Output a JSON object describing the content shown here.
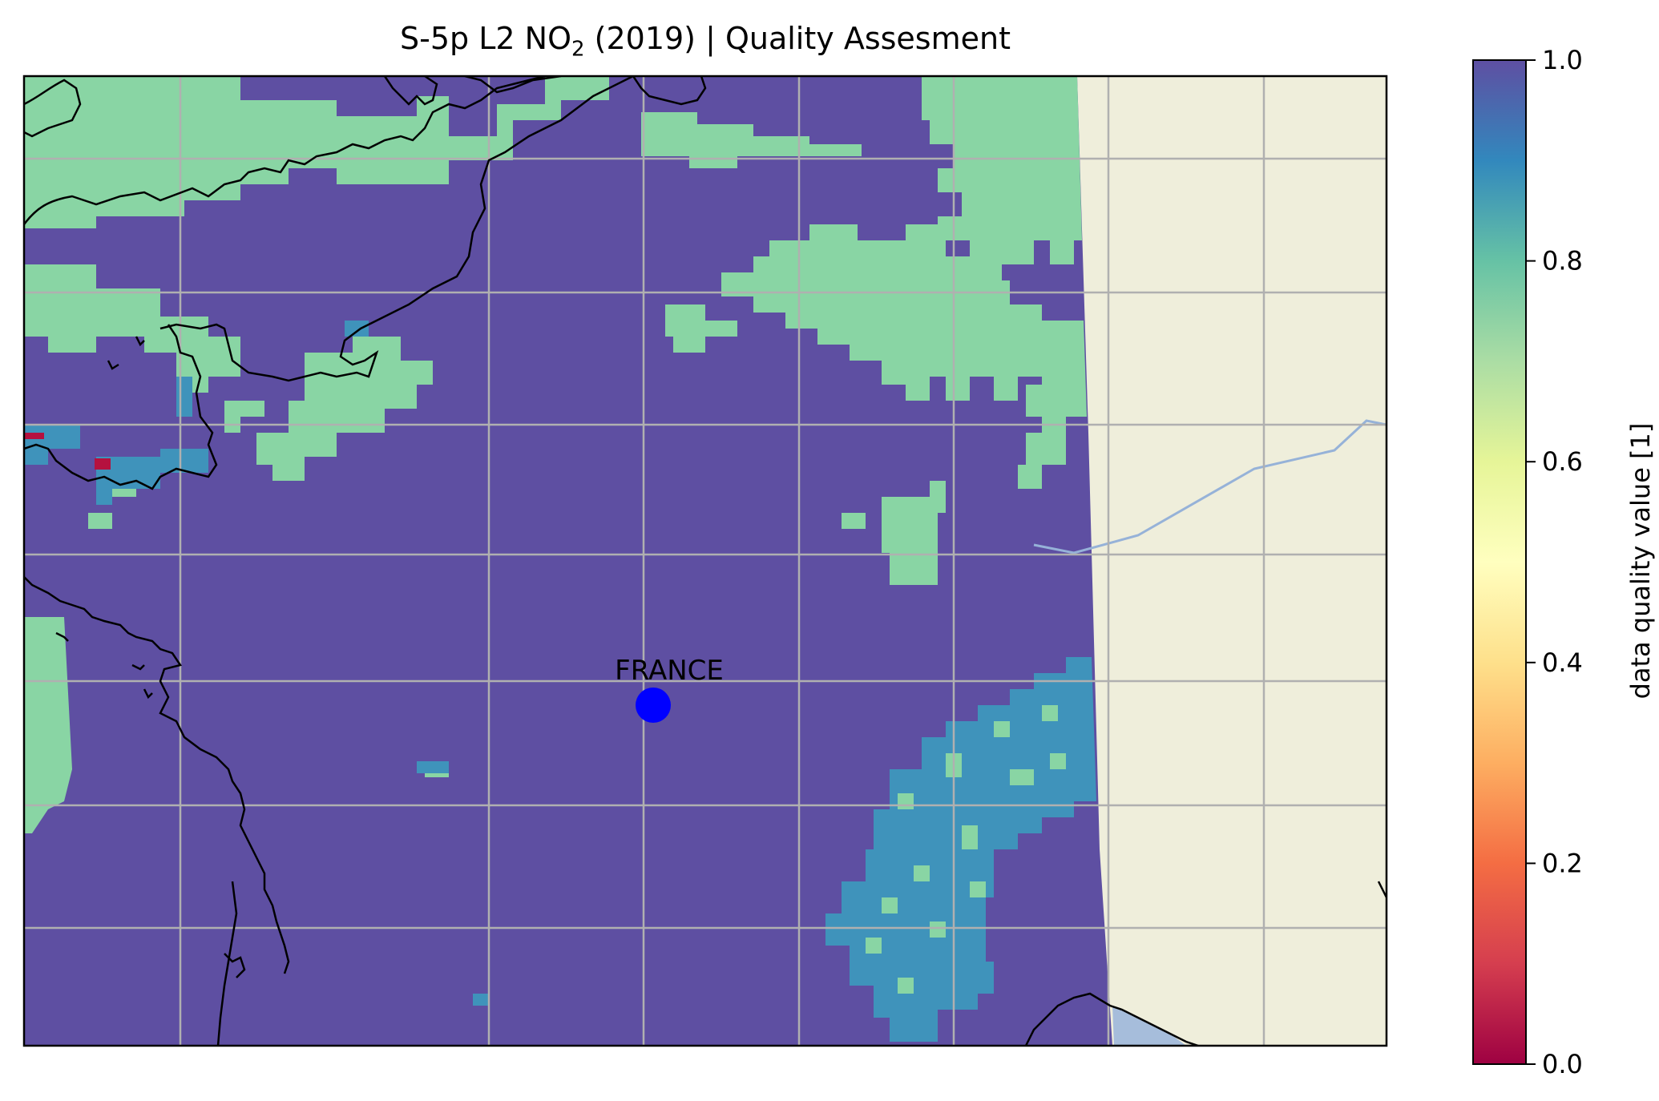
{
  "title": {
    "prefix": "S-5p L2 NO",
    "subscript": "2",
    "suffix": " (2019) | Quality Assesment"
  },
  "map": {
    "marker_label": "FRANCE",
    "marker_color": "#0000ff",
    "colors": {
      "land": "#efeedb",
      "high_quality": "#5e4fa2",
      "mid_quality": "#89d5a4",
      "cyan_quality": "#3f93bb",
      "low_quality": "#b5113f",
      "water": "#a6bddb",
      "gridline": "#b0b0b0",
      "border": "#96b2d8"
    }
  },
  "colorbar": {
    "label": "data quality value [1]",
    "ticks": [
      "0.0",
      "0.2",
      "0.4",
      "0.6",
      "0.8",
      "1.0"
    ],
    "colormap": "Spectral",
    "range": [
      0.0,
      1.0
    ]
  }
}
